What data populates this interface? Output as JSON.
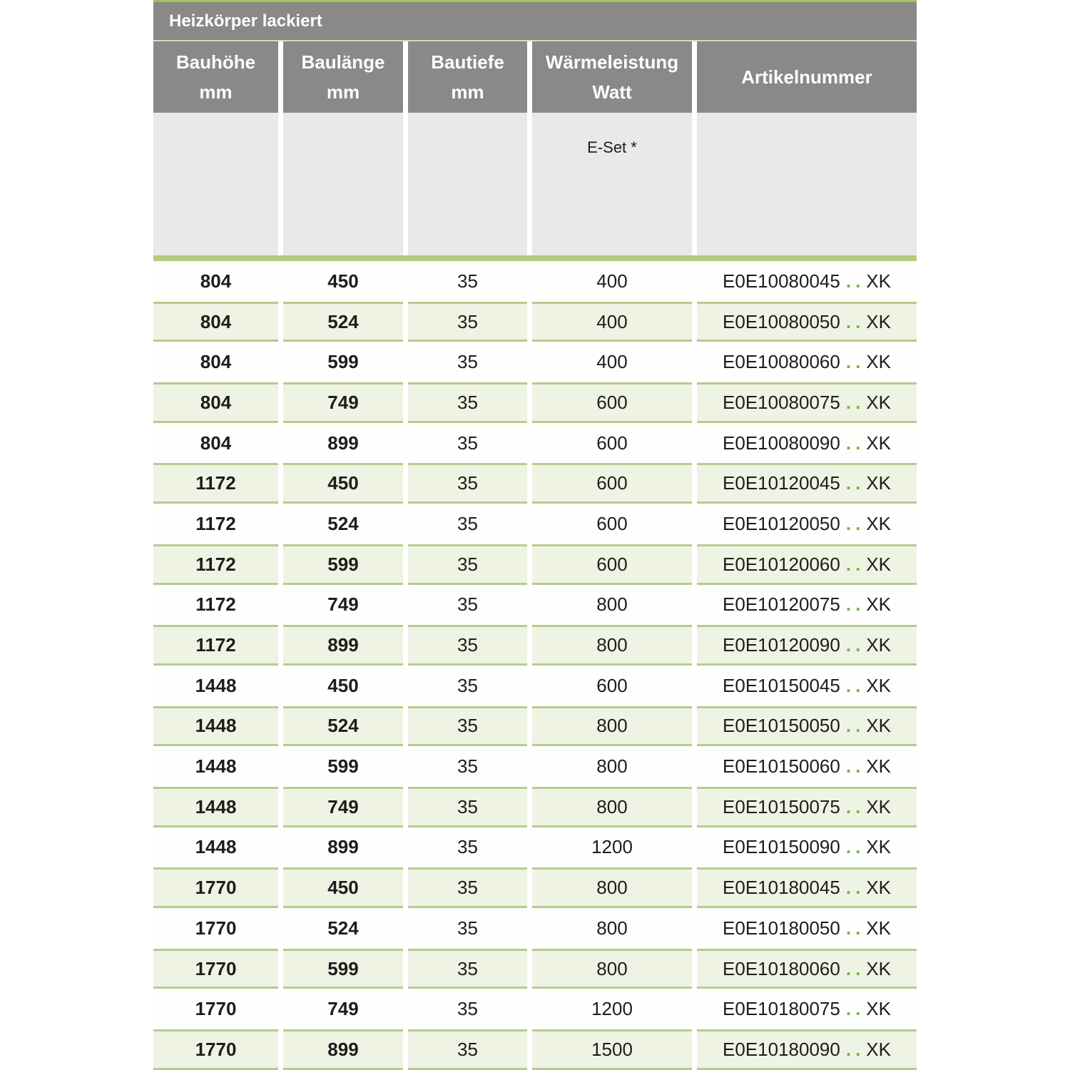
{
  "table": {
    "title": "Heizkörper lackiert",
    "columns": [
      {
        "label": "Bauhöhe",
        "sub": "mm"
      },
      {
        "label": "Baulänge",
        "sub": "mm"
      },
      {
        "label": "Bautiefe",
        "sub": "mm"
      },
      {
        "label": "Wärmeleistung",
        "sub": "Watt"
      },
      {
        "label": "Artikelnummer",
        "sub": ""
      }
    ],
    "subheader": {
      "eset_label": "E-Set *"
    },
    "colors": {
      "header_gray": "#898987",
      "subheader_gray": "#e9e9e9",
      "accent_green": "#a2c263",
      "bar_green": "#b2cb85",
      "separator_green": "#b5cc8e",
      "row_green": "#eef3e4",
      "dots_green": "#76b243",
      "text_dark": "#1d1d1b"
    },
    "rows": [
      {
        "hoehe": "804",
        "laenge": "450",
        "tiefe": "35",
        "watt": "400",
        "art_code": "E0E10080045",
        "art_dots": "..",
        "art_suffix": "XK"
      },
      {
        "hoehe": "804",
        "laenge": "524",
        "tiefe": "35",
        "watt": "400",
        "art_code": "E0E10080050",
        "art_dots": "..",
        "art_suffix": "XK"
      },
      {
        "hoehe": "804",
        "laenge": "599",
        "tiefe": "35",
        "watt": "400",
        "art_code": "E0E10080060",
        "art_dots": "..",
        "art_suffix": "XK"
      },
      {
        "hoehe": "804",
        "laenge": "749",
        "tiefe": "35",
        "watt": "600",
        "art_code": "E0E10080075",
        "art_dots": "..",
        "art_suffix": "XK"
      },
      {
        "hoehe": "804",
        "laenge": "899",
        "tiefe": "35",
        "watt": "600",
        "art_code": "E0E10080090",
        "art_dots": "..",
        "art_suffix": "XK"
      },
      {
        "hoehe": "1172",
        "laenge": "450",
        "tiefe": "35",
        "watt": "600",
        "art_code": "E0E10120045",
        "art_dots": "..",
        "art_suffix": "XK"
      },
      {
        "hoehe": "1172",
        "laenge": "524",
        "tiefe": "35",
        "watt": "600",
        "art_code": "E0E10120050",
        "art_dots": "..",
        "art_suffix": "XK"
      },
      {
        "hoehe": "1172",
        "laenge": "599",
        "tiefe": "35",
        "watt": "600",
        "art_code": "E0E10120060",
        "art_dots": "..",
        "art_suffix": "XK"
      },
      {
        "hoehe": "1172",
        "laenge": "749",
        "tiefe": "35",
        "watt": "800",
        "art_code": "E0E10120075",
        "art_dots": "..",
        "art_suffix": "XK"
      },
      {
        "hoehe": "1172",
        "laenge": "899",
        "tiefe": "35",
        "watt": "800",
        "art_code": "E0E10120090",
        "art_dots": "..",
        "art_suffix": "XK"
      },
      {
        "hoehe": "1448",
        "laenge": "450",
        "tiefe": "35",
        "watt": "600",
        "art_code": "E0E10150045",
        "art_dots": "..",
        "art_suffix": "XK"
      },
      {
        "hoehe": "1448",
        "laenge": "524",
        "tiefe": "35",
        "watt": "800",
        "art_code": "E0E10150050",
        "art_dots": "..",
        "art_suffix": "XK"
      },
      {
        "hoehe": "1448",
        "laenge": "599",
        "tiefe": "35",
        "watt": "800",
        "art_code": "E0E10150060",
        "art_dots": "..",
        "art_suffix": "XK"
      },
      {
        "hoehe": "1448",
        "laenge": "749",
        "tiefe": "35",
        "watt": "800",
        "art_code": "E0E10150075",
        "art_dots": "..",
        "art_suffix": "XK"
      },
      {
        "hoehe": "1448",
        "laenge": "899",
        "tiefe": "35",
        "watt": "1200",
        "art_code": "E0E10150090",
        "art_dots": "..",
        "art_suffix": "XK"
      },
      {
        "hoehe": "1770",
        "laenge": "450",
        "tiefe": "35",
        "watt": "800",
        "art_code": "E0E10180045",
        "art_dots": "..",
        "art_suffix": "XK"
      },
      {
        "hoehe": "1770",
        "laenge": "524",
        "tiefe": "35",
        "watt": "800",
        "art_code": "E0E10180050",
        "art_dots": "..",
        "art_suffix": "XK"
      },
      {
        "hoehe": "1770",
        "laenge": "599",
        "tiefe": "35",
        "watt": "800",
        "art_code": "E0E10180060",
        "art_dots": "..",
        "art_suffix": "XK"
      },
      {
        "hoehe": "1770",
        "laenge": "749",
        "tiefe": "35",
        "watt": "1200",
        "art_code": "E0E10180075",
        "art_dots": "..",
        "art_suffix": "XK"
      },
      {
        "hoehe": "1770",
        "laenge": "899",
        "tiefe": "35",
        "watt": "1500",
        "art_code": "E0E10180090",
        "art_dots": "..",
        "art_suffix": "XK"
      }
    ]
  }
}
